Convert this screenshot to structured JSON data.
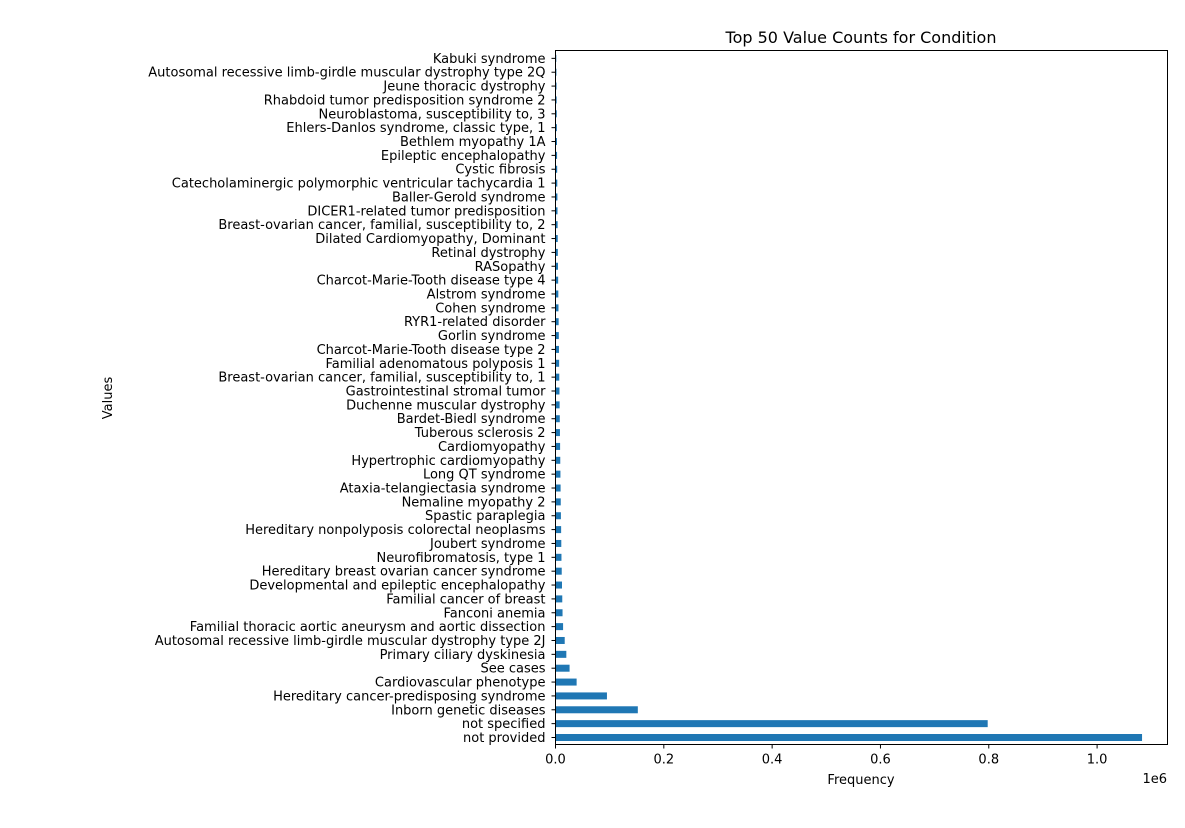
{
  "chart_data": {
    "type": "bar",
    "orientation": "horizontal",
    "title": "Top 50 Value Counts for Condition",
    "xlabel": "Frequency",
    "ylabel": "Values",
    "x_scale_label": "1e6",
    "xlim": [
      0,
      1.13
    ],
    "xticks": [
      "0.0",
      "0.2",
      "0.4",
      "0.6",
      "0.8",
      "1.0"
    ],
    "grid": false,
    "legend": "none",
    "bar_color": "#1f77b4",
    "categories": [
      "not provided",
      "not specified",
      "Inborn genetic diseases",
      "Hereditary cancer-predisposing syndrome",
      "Cardiovascular phenotype",
      "See cases",
      "Primary ciliary dyskinesia",
      "Autosomal recessive limb-girdle muscular dystrophy type 2J",
      "Familial thoracic aortic aneurysm and aortic dissection",
      "Fanconi anemia",
      "Familial cancer of breast",
      "Developmental and epileptic encephalopathy",
      "Hereditary breast ovarian cancer syndrome",
      "Neurofibromatosis, type 1",
      "Joubert syndrome",
      "Hereditary nonpolyposis colorectal neoplasms",
      "Spastic paraplegia",
      "Nemaline myopathy 2",
      "Ataxia-telangiectasia syndrome",
      "Long QT syndrome",
      "Hypertrophic cardiomyopathy",
      "Cardiomyopathy",
      "Tuberous sclerosis 2",
      "Bardet-Biedl syndrome",
      "Duchenne muscular dystrophy",
      "Gastrointestinal stromal tumor",
      "Breast-ovarian cancer, familial, susceptibility to, 1",
      "Familial adenomatous polyposis 1",
      "Charcot-Marie-Tooth disease type 2",
      "Gorlin syndrome",
      "RYR1-related disorder",
      "Cohen syndrome",
      "Alstrom syndrome",
      "Charcot-Marie-Tooth disease type 4",
      "RASopathy",
      "Retinal dystrophy",
      "Dilated Cardiomyopathy, Dominant",
      "Breast-ovarian cancer, familial, susceptibility to, 2",
      "DICER1-related tumor predisposition",
      "Baller-Gerold syndrome",
      "Catecholaminergic polymorphic ventricular tachycardia 1",
      "Cystic fibrosis",
      "Epileptic encephalopathy",
      "Bethlem myopathy 1A",
      "Ehlers-Danlos syndrome, classic type, 1",
      "Neuroblastoma, susceptibility to, 3",
      "Rhabdoid tumor predisposition syndrome 2",
      "Jeune thoracic dystrophy",
      "Autosomal recessive limb-girdle muscular dystrophy type 2Q",
      "Kabuki syndrome"
    ],
    "values": [
      1083000,
      798000,
      152000,
      95000,
      39000,
      26000,
      20000,
      17000,
      14000,
      13000,
      12500,
      12000,
      11500,
      11000,
      10700,
      10400,
      10000,
      9700,
      9400,
      9100,
      8800,
      8500,
      8200,
      7900,
      7600,
      7300,
      7000,
      6700,
      6400,
      6100,
      5800,
      5500,
      5200,
      4900,
      4600,
      4300,
      4100,
      3900,
      3700,
      3500,
      3300,
      3100,
      2900,
      2700,
      2500,
      2300,
      2100,
      1900,
      1700,
      1500
    ]
  }
}
